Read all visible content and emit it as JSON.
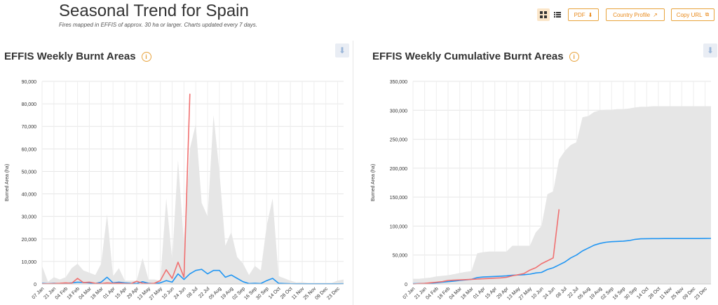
{
  "page": {
    "title": "Seasonal Trend for Spain",
    "subtitle": "Fires mapped in EFFIS of approx. 30 ha or larger. Charts updated every 7 days."
  },
  "toolbar": {
    "grid_view_icon": "grid-icon",
    "list_view_icon": "list-icon",
    "pdf_label": "PDF",
    "country_profile_label": "Country Profile",
    "copy_url_label": "Copy URL"
  },
  "colors": {
    "accent": "#e8891a",
    "current_year": "#f07070",
    "mean": "#2196f3",
    "range": "#e6e6e6"
  },
  "chart_data": [
    {
      "type": "line",
      "title": "EFFIS Weekly Burnt Areas",
      "ylabel": "Burned Area (ha)",
      "xlabel": "",
      "ylim": [
        0,
        90000
      ],
      "yticks": [
        0,
        10000,
        20000,
        30000,
        40000,
        50000,
        60000,
        70000,
        80000,
        90000
      ],
      "ytick_labels": [
        "0",
        "10,000",
        "20,000",
        "30,000",
        "40,000",
        "50,000",
        "60,000",
        "70,000",
        "80,000",
        "90,000"
      ],
      "xtick_labels": [
        "07 Jan",
        "21 Jan",
        "04 Feb",
        "18 Feb",
        "04 Mar",
        "18 Mar",
        "01 Apr",
        "15 Apr",
        "29 Apr",
        "13 May",
        "27 May",
        "10 Jun",
        "24 Jun",
        "08 Jul",
        "22 Jul",
        "05 Aug",
        "19 Aug",
        "02 Sep",
        "16 Sep",
        "30 Sep",
        "14 Oct",
        "28 Oct",
        "11 Nov",
        "25 Nov",
        "09 Dec",
        "23 Dec"
      ],
      "range_max": [
        8000,
        1000,
        3000,
        2000,
        3000,
        7000,
        9000,
        6000,
        5000,
        4000,
        9000,
        31000,
        3500,
        7000,
        1500,
        1500,
        1500,
        11500,
        2000,
        2000,
        1500,
        38000,
        11000,
        55000,
        18000,
        60000,
        71000,
        36000,
        30000,
        75000,
        50000,
        17000,
        23000,
        12000,
        9000,
        4000,
        8000,
        6000,
        26000,
        38000,
        3500,
        2500,
        1500,
        700,
        800,
        500,
        500,
        500,
        500,
        500,
        1500,
        2000
      ],
      "series": [
        {
          "name": "",
          "color": "#2196f3",
          "values": [
            300,
            100,
            300,
            200,
            300,
            500,
            800,
            700,
            500,
            200,
            800,
            3000,
            500,
            800,
            500,
            300,
            200,
            1000,
            300,
            200,
            500,
            1500,
            800,
            4500,
            2000,
            4500,
            6000,
            6500,
            4500,
            6000,
            6000,
            3000,
            4000,
            2500,
            1000,
            200,
            300,
            200,
            1500,
            2500,
            300,
            200,
            100,
            50,
            50,
            50,
            50,
            50,
            50,
            50,
            50,
            100
          ]
        },
        {
          "name": "",
          "color": "#f07070",
          "values": [
            100,
            100,
            200,
            300,
            500,
            300,
            2500,
            600,
            800,
            300,
            200,
            500,
            300,
            400,
            200,
            100,
            1200,
            300,
            100,
            300,
            1500,
            6300,
            2500,
            9700,
            3000,
            84500
          ]
        }
      ]
    },
    {
      "type": "line",
      "title": "EFFIS Weekly Cumulative Burnt Areas",
      "ylabel": "Burned Area (ha)",
      "xlabel": "",
      "ylim": [
        0,
        350000
      ],
      "yticks": [
        0,
        50000,
        100000,
        150000,
        200000,
        250000,
        300000,
        350000
      ],
      "ytick_labels": [
        "0",
        "50,000",
        "100,000",
        "150,000",
        "200,000",
        "250,000",
        "300,000",
        "350,000"
      ],
      "xtick_labels": [
        "07 Jan",
        "21 Jan",
        "04 Feb",
        "18 Feb",
        "04 Mar",
        "18 Mar",
        "01 Apr",
        "15 Apr",
        "29 Apr",
        "13 May",
        "27 May",
        "10 Jun",
        "24 Jun",
        "08 Jul",
        "22 Jul",
        "05 Aug",
        "19 Aug",
        "02 Sep",
        "16 Sep",
        "30 Sep",
        "14 Oct",
        "28 Oct",
        "11 Nov",
        "25 Nov",
        "09 Dec",
        "23 Dec"
      ],
      "range_max": [
        9000,
        9000,
        10000,
        11000,
        13000,
        14000,
        15000,
        17000,
        19000,
        21000,
        22000,
        53000,
        55000,
        56000,
        56000,
        56000,
        56000,
        66000,
        66000,
        66000,
        66000,
        89000,
        100000,
        155000,
        160000,
        215000,
        230000,
        240000,
        245000,
        288000,
        290000,
        297000,
        300000,
        301000,
        301000,
        302000,
        302000,
        303000,
        305000,
        306000,
        306000,
        307000,
        307000,
        307000,
        307000,
        307000,
        307000,
        307000,
        307000,
        307000,
        307000,
        307000
      ],
      "series": [
        {
          "name": "",
          "color": "#2196f3",
          "values": [
            500,
            700,
            1000,
            1300,
            2000,
            3000,
            4000,
            5000,
            6000,
            7000,
            8000,
            11000,
            12000,
            12500,
            13000,
            13500,
            14000,
            15000,
            15500,
            16000,
            17000,
            19000,
            20000,
            25000,
            28000,
            33000,
            38000,
            45000,
            50000,
            57000,
            62000,
            67000,
            70000,
            72000,
            73000,
            73500,
            74000,
            75000,
            77000,
            78000,
            78200,
            78300,
            78400,
            78500,
            78500,
            78500,
            78500,
            78500,
            78500,
            78500,
            78600,
            78700
          ]
        },
        {
          "name": "",
          "color": "#f07070",
          "values": [
            0,
            500,
            1000,
            2000,
            3000,
            4000,
            6000,
            6500,
            7000,
            7500,
            8000,
            8500,
            9000,
            9500,
            10000,
            10500,
            11500,
            14000,
            16000,
            18000,
            24000,
            28000,
            35000,
            40000,
            45000,
            129000
          ]
        }
      ]
    }
  ]
}
